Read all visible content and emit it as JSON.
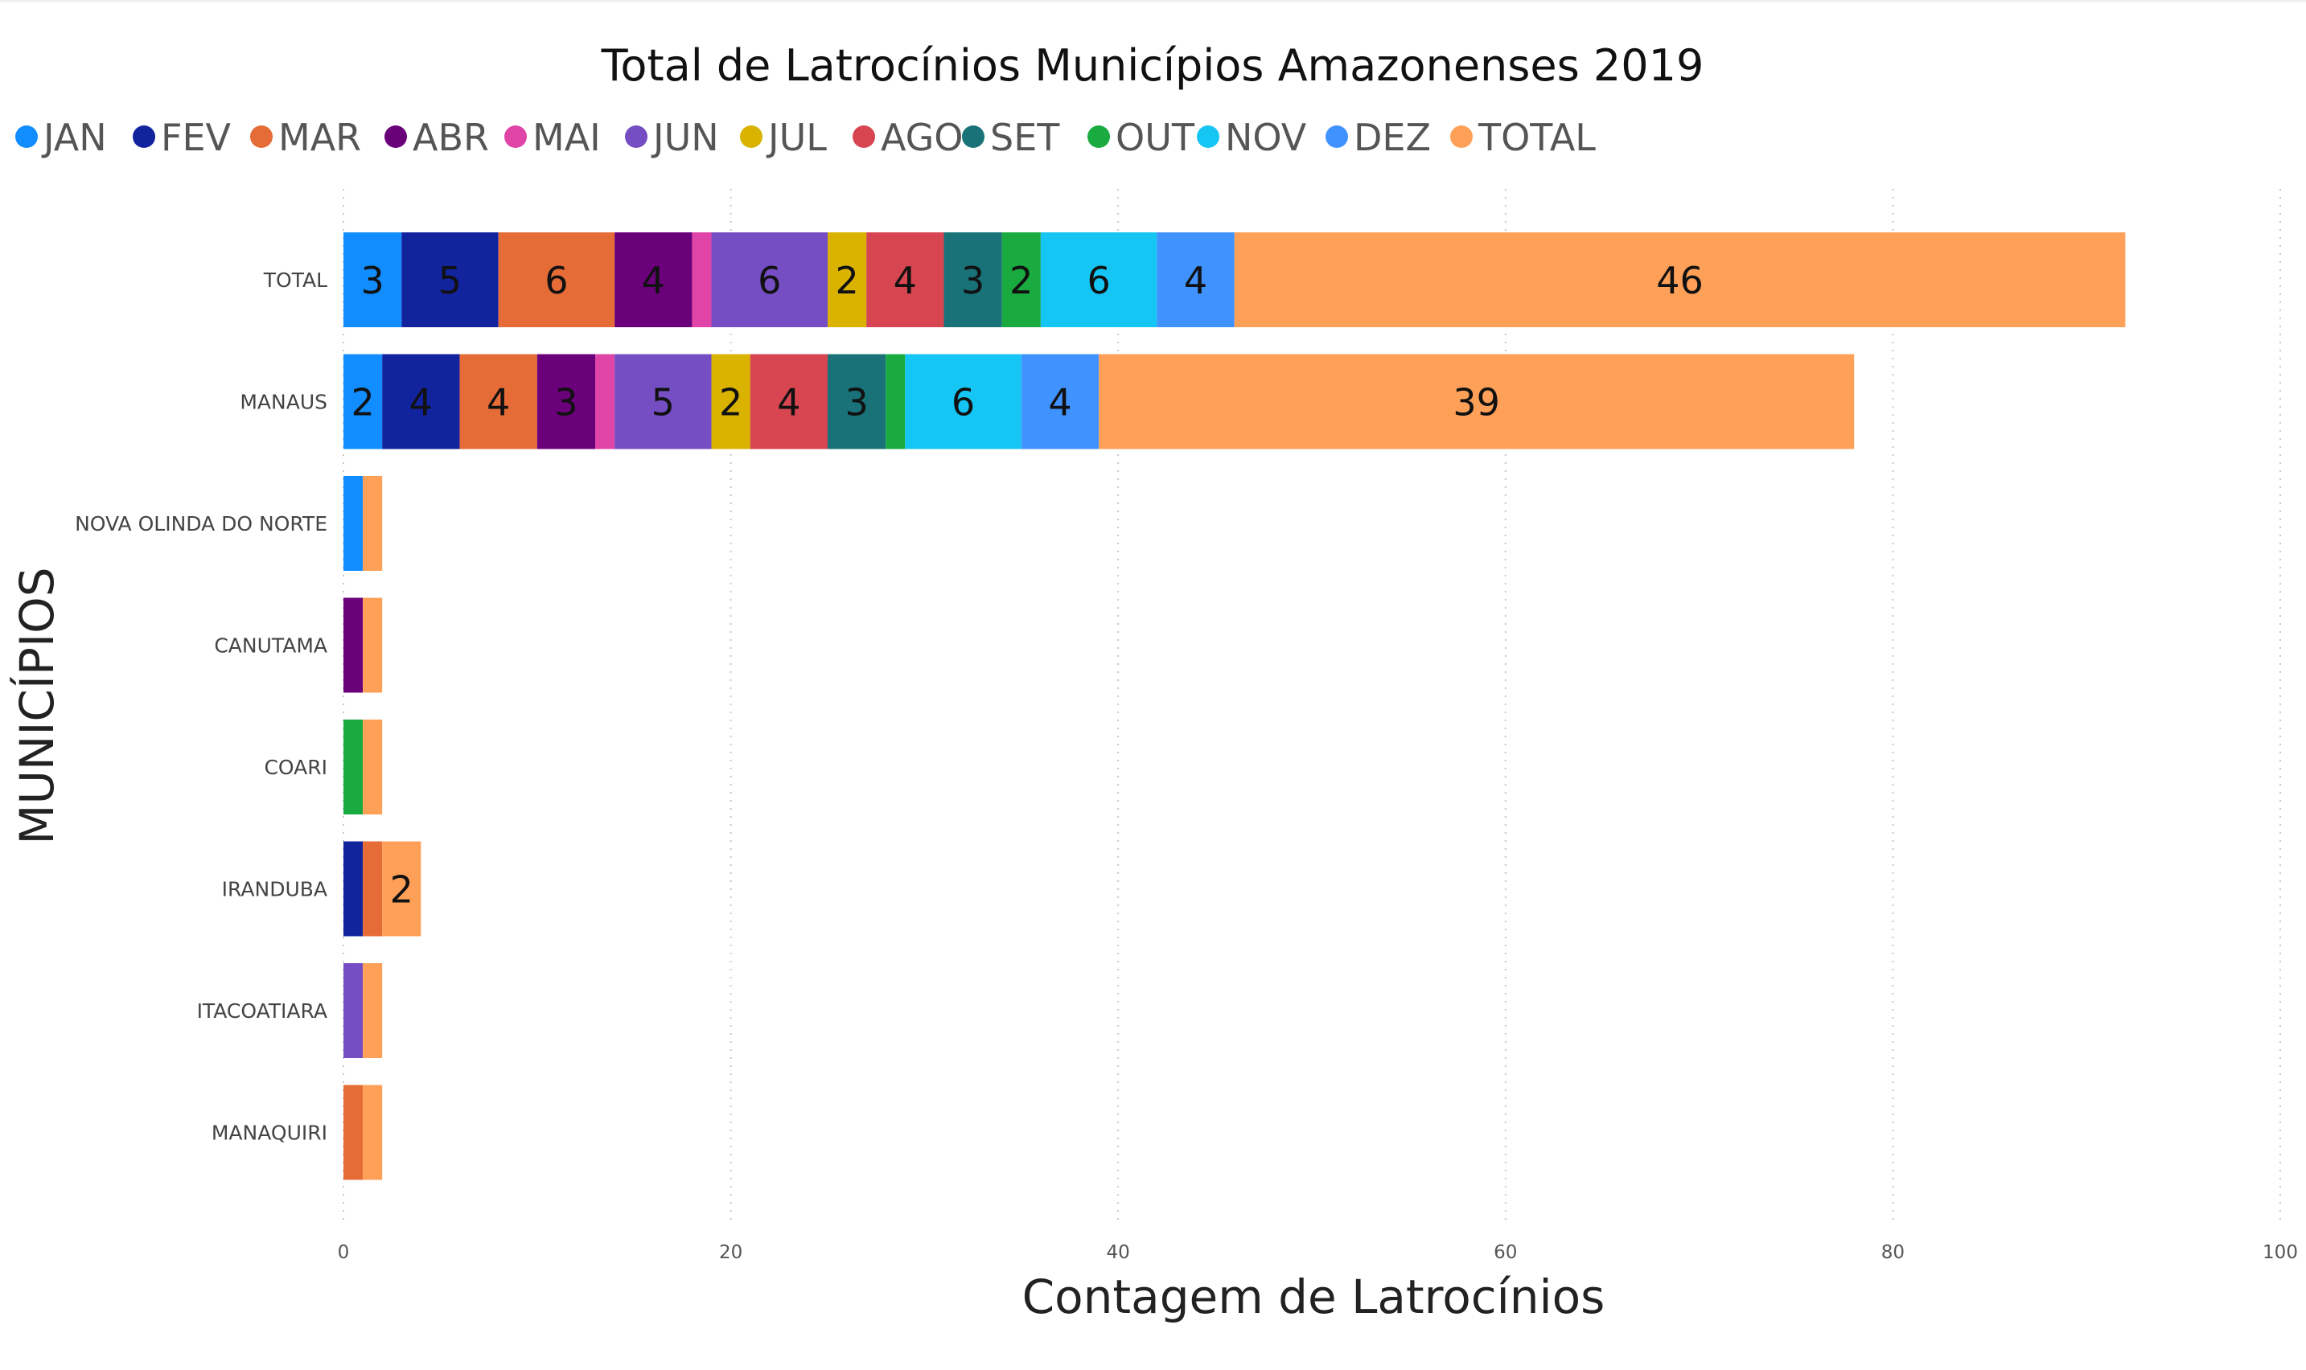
{
  "chart_data": {
    "type": "bar",
    "orientation": "horizontal",
    "stacked": true,
    "title": "Total de Latrocínios Municípios Amazonenses 2019",
    "xlabel": "Contagem de Latrocínios",
    "ylabel": "MUNICÍPIOS",
    "xlim": [
      0,
      100
    ],
    "xticks": [
      0,
      20,
      40,
      60,
      80,
      100
    ],
    "grid": "vertical-dotted",
    "legend_position": "top",
    "categories": [
      "TOTAL",
      "MANAUS",
      "NOVA OLINDA DO NORTE",
      "CANUTAMA",
      "COARI",
      "IRANDUBA",
      "ITACOATIARA",
      "MANAQUIRI"
    ],
    "series": [
      {
        "name": "JAN",
        "color": "#118DFF",
        "values": [
          3,
          2,
          1,
          0,
          0,
          0,
          0,
          0
        ]
      },
      {
        "name": "FEV",
        "color": "#12239E",
        "values": [
          5,
          4,
          0,
          0,
          0,
          1,
          0,
          0
        ]
      },
      {
        "name": "MAR",
        "color": "#E66C37",
        "values": [
          6,
          4,
          0,
          0,
          0,
          1,
          0,
          1
        ]
      },
      {
        "name": "ABR",
        "color": "#6B007B",
        "values": [
          4,
          3,
          0,
          1,
          0,
          0,
          0,
          0
        ]
      },
      {
        "name": "MAI",
        "color": "#E044A7",
        "values": [
          1,
          1,
          0,
          0,
          0,
          0,
          0,
          0
        ]
      },
      {
        "name": "JUN",
        "color": "#744EC2",
        "values": [
          6,
          5,
          0,
          0,
          0,
          0,
          1,
          0
        ]
      },
      {
        "name": "JUL",
        "color": "#D9B300",
        "values": [
          2,
          2,
          0,
          0,
          0,
          0,
          0,
          0
        ]
      },
      {
        "name": "AGO",
        "color": "#D64550",
        "values": [
          4,
          4,
          0,
          0,
          0,
          0,
          0,
          0
        ]
      },
      {
        "name": "SET",
        "color": "#197278",
        "values": [
          3,
          3,
          0,
          0,
          0,
          0,
          0,
          0
        ]
      },
      {
        "name": "OUT",
        "color": "#1AAB40",
        "values": [
          2,
          1,
          0,
          0,
          1,
          0,
          0,
          0
        ]
      },
      {
        "name": "NOV",
        "color": "#15C6F4",
        "values": [
          6,
          6,
          0,
          0,
          0,
          0,
          0,
          0
        ]
      },
      {
        "name": "DEZ",
        "color": "#4092FF",
        "values": [
          4,
          4,
          0,
          0,
          0,
          0,
          0,
          0
        ]
      },
      {
        "name": "TOTAL",
        "color": "#FFA058",
        "values": [
          46,
          39,
          1,
          1,
          1,
          2,
          1,
          1
        ]
      }
    ]
  }
}
